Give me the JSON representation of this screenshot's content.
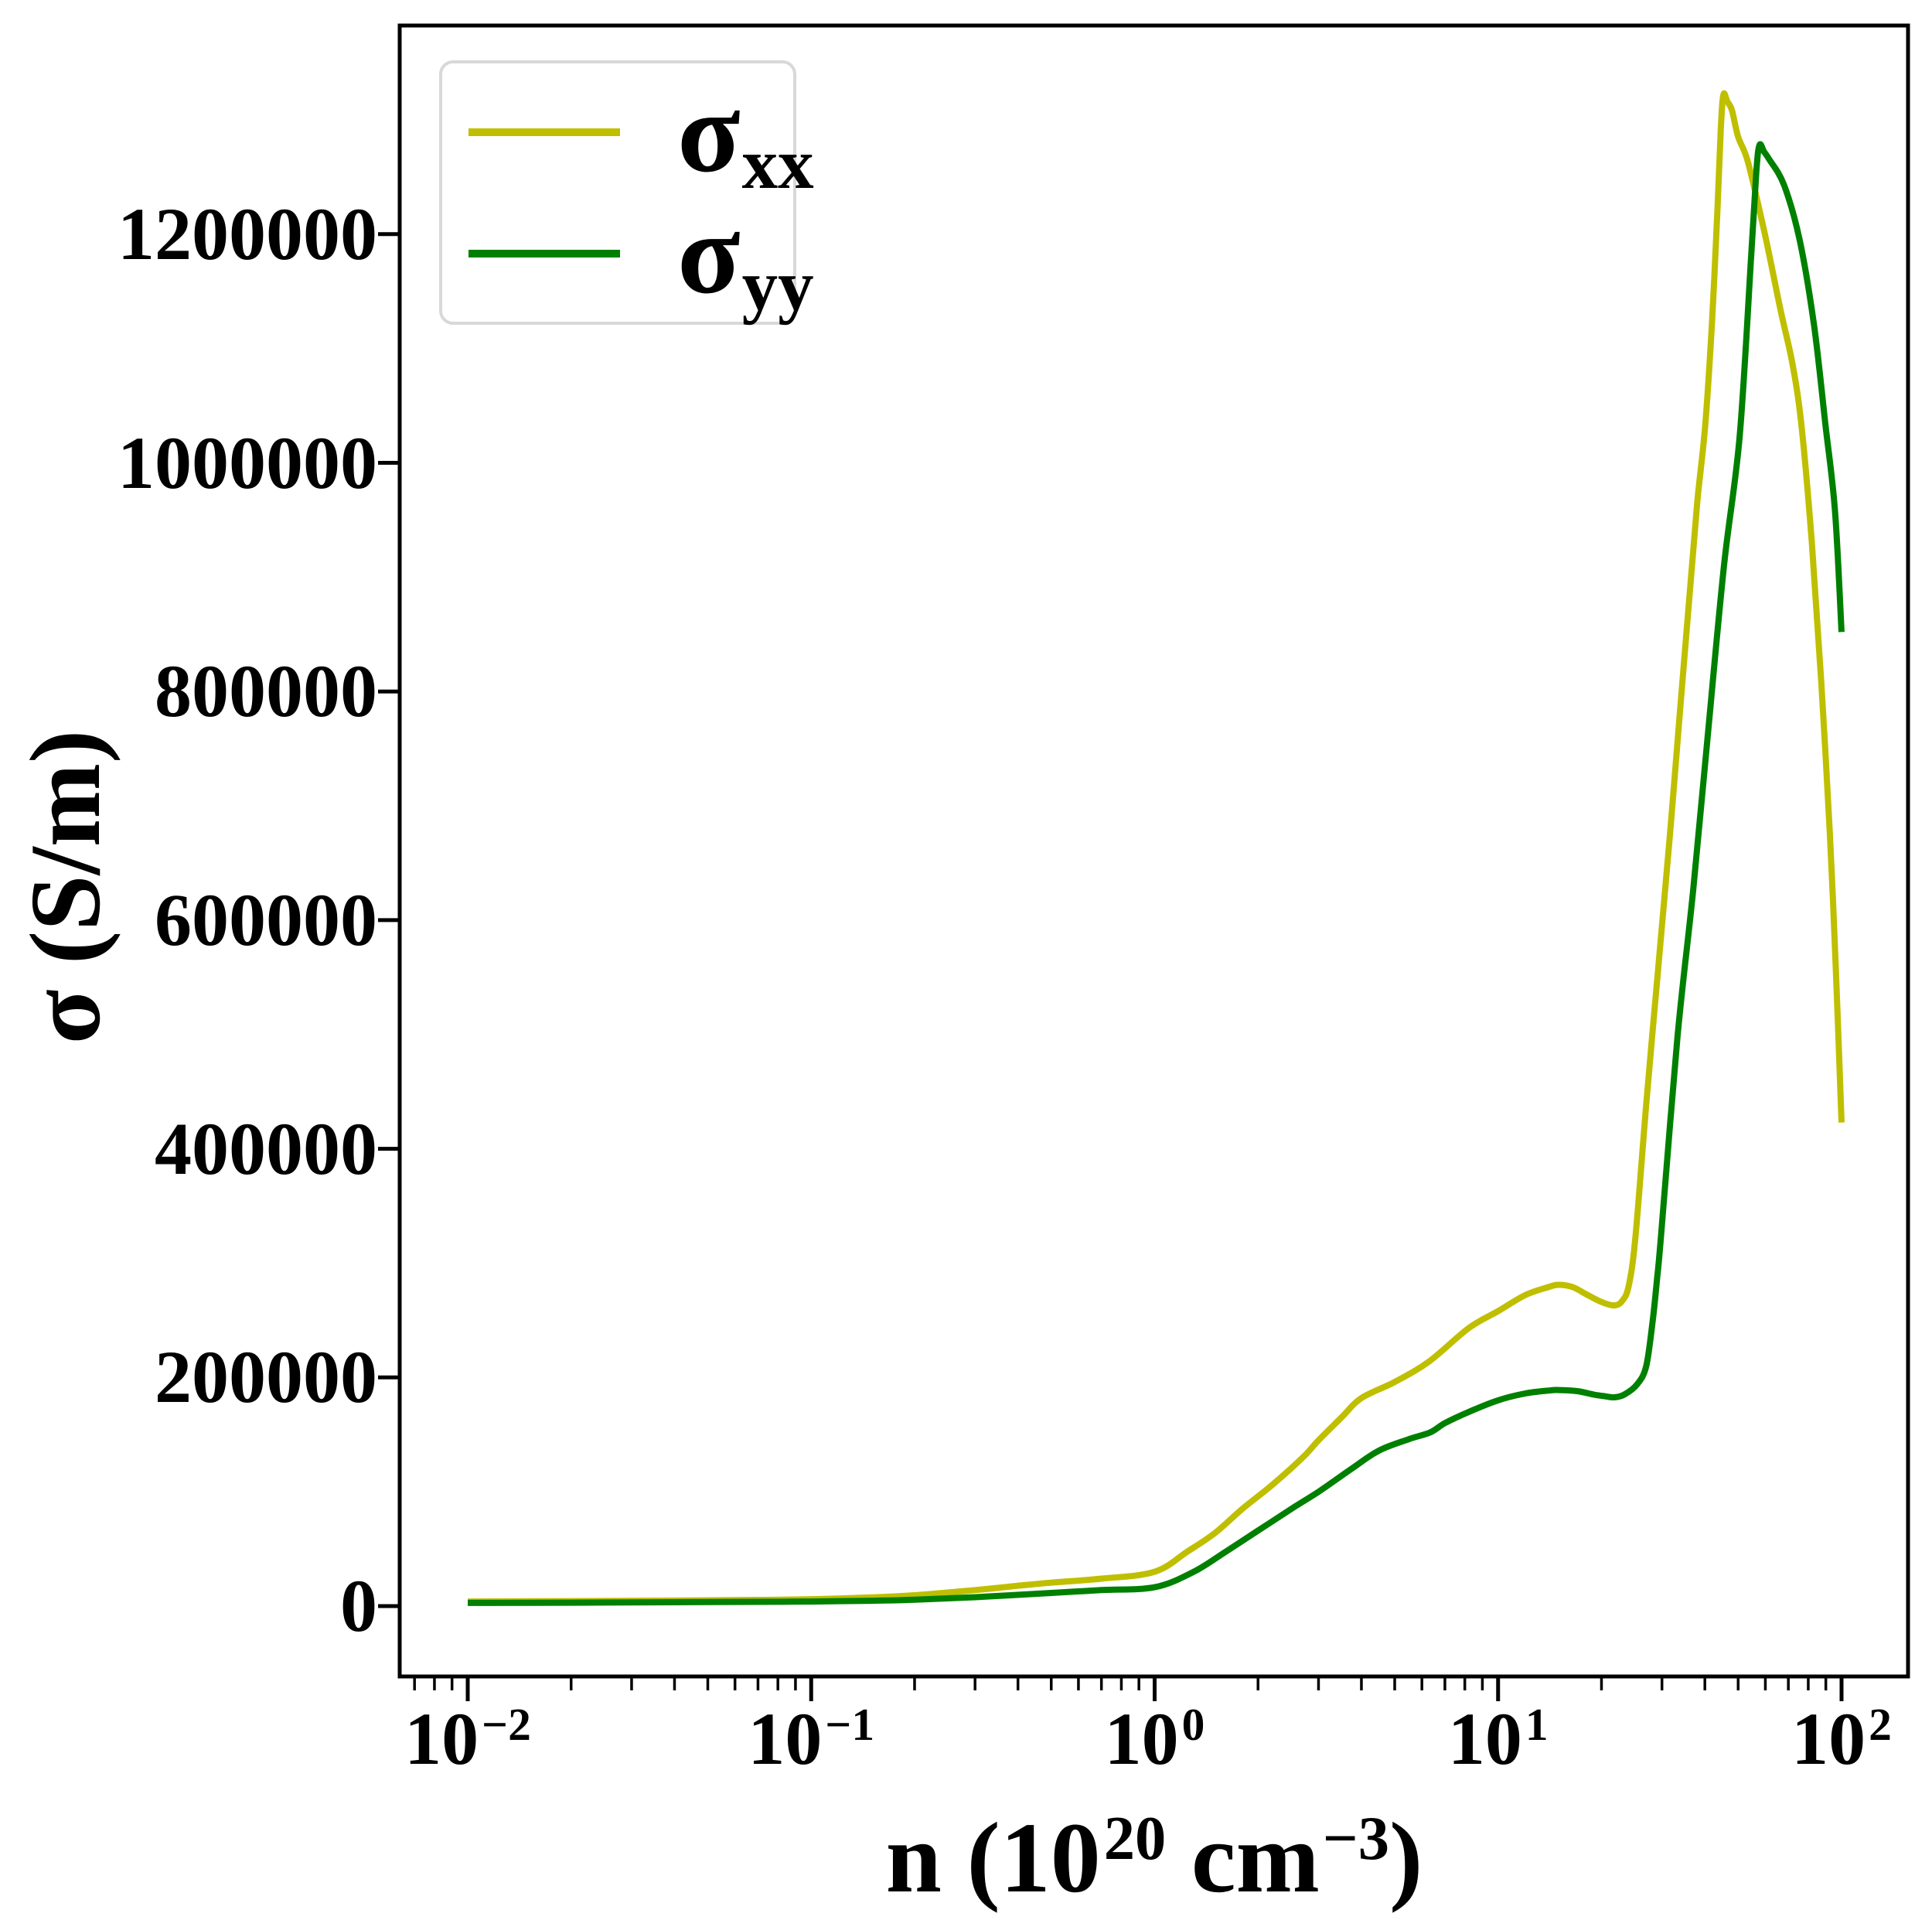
{
  "figure": {
    "background": "#ffffff",
    "text_color": "#000000"
  },
  "chart_data": {
    "type": "line",
    "title": "",
    "x_scale": "log",
    "grid": false,
    "xlabel_parts": {
      "pre": "n (10",
      "sup": "20",
      "mid": " cm",
      "sup2": "−3",
      "post": ")"
    },
    "ylabel": "σ (S/m)",
    "xlim": [
      0.00634,
      156
    ],
    "ylim": [
      -61500,
      1382500
    ],
    "x_ticks": [
      {
        "base": "10",
        "exp": "−2",
        "value": 0.01
      },
      {
        "base": "10",
        "exp": "−1",
        "value": 0.1
      },
      {
        "base": "10",
        "exp": "0",
        "value": 1
      },
      {
        "base": "10",
        "exp": "1",
        "value": 10
      },
      {
        "base": "10",
        "exp": "2",
        "value": 100
      }
    ],
    "y_ticks": [
      {
        "label": "0",
        "value": 0
      },
      {
        "label": "200000",
        "value": 200000
      },
      {
        "label": "400000",
        "value": 400000
      },
      {
        "label": "600000",
        "value": 600000
      },
      {
        "label": "800000",
        "value": 800000
      },
      {
        "label": "1000000",
        "value": 1000000
      },
      {
        "label": "1200000",
        "value": 1200000
      }
    ],
    "legend": {
      "position": "upper left",
      "entries": [
        {
          "base": "σ",
          "sub": "xx",
          "color": "#bfbf00"
        },
        {
          "base": "σ",
          "sub": "yy",
          "color": "#008000"
        }
      ]
    },
    "series": [
      {
        "name": "sigma_xx",
        "color": "#bfbf00",
        "points": [
          [
            0.01,
            4000
          ],
          [
            0.02,
            4300
          ],
          [
            0.04,
            4800
          ],
          [
            0.07,
            5400
          ],
          [
            0.1,
            6000
          ],
          [
            0.15,
            7600
          ],
          [
            0.2,
            9500
          ],
          [
            0.3,
            14000
          ],
          [
            0.4,
            17800
          ],
          [
            0.5,
            20500
          ],
          [
            0.7,
            24000
          ],
          [
            1.0,
            30000
          ],
          [
            1.25,
            48000
          ],
          [
            1.5,
            64000
          ],
          [
            1.8,
            85000
          ],
          [
            2.2,
            106000
          ],
          [
            2.7,
            130000
          ],
          [
            3.0,
            145000
          ],
          [
            3.5,
            165000
          ],
          [
            4.0,
            182000
          ],
          [
            5.0,
            196000
          ],
          [
            6.3,
            214000
          ],
          [
            8.2,
            243000
          ],
          [
            10,
            258000
          ],
          [
            12,
            272000
          ],
          [
            14,
            279000
          ],
          [
            15,
            281000
          ],
          [
            16.5,
            279000
          ],
          [
            18,
            273000
          ],
          [
            20,
            266000
          ],
          [
            21.8,
            263000
          ],
          [
            23,
            267000
          ],
          [
            24,
            280000
          ],
          [
            25.1,
            322000
          ],
          [
            27,
            439000
          ],
          [
            29.2,
            555000
          ],
          [
            31.6,
            672000
          ],
          [
            34,
            790000
          ],
          [
            36,
            880000
          ],
          [
            38,
            965000
          ],
          [
            40.1,
            1033000
          ],
          [
            42,
            1125000
          ],
          [
            43.5,
            1220000
          ],
          [
            44.5,
            1292000
          ],
          [
            45.3,
            1322000
          ],
          [
            46.5,
            1316000
          ],
          [
            48,
            1308000
          ],
          [
            50,
            1285000
          ],
          [
            53.4,
            1263000
          ],
          [
            59.6,
            1202000
          ],
          [
            66.4,
            1134000
          ],
          [
            71.9,
            1087000
          ],
          [
            76.4,
            1033000
          ],
          [
            81.9,
            931000
          ],
          [
            87.2,
            810000
          ],
          [
            92.5,
            674000
          ],
          [
            96.2,
            559000
          ],
          [
            100,
            423000
          ]
        ]
      },
      {
        "name": "sigma_yy",
        "color": "#008000",
        "points": [
          [
            0.01,
            2800
          ],
          [
            0.02,
            3000
          ],
          [
            0.04,
            3400
          ],
          [
            0.07,
            3700
          ],
          [
            0.1,
            4000
          ],
          [
            0.15,
            4700
          ],
          [
            0.2,
            5600
          ],
          [
            0.3,
            7800
          ],
          [
            0.5,
            11500
          ],
          [
            0.7,
            14000
          ],
          [
            1.0,
            16500
          ],
          [
            1.3,
            30000
          ],
          [
            1.6,
            47000
          ],
          [
            2.0,
            66000
          ],
          [
            2.5,
            85000
          ],
          [
            3.0,
            100000
          ],
          [
            3.74,
            120000
          ],
          [
            4.5,
            136000
          ],
          [
            5.5,
            146000
          ],
          [
            6.35,
            152000
          ],
          [
            7.0,
            160000
          ],
          [
            8.24,
            170000
          ],
          [
            10,
            180000
          ],
          [
            12,
            186000
          ],
          [
            14,
            188500
          ],
          [
            15,
            189000
          ],
          [
            17,
            188000
          ],
          [
            19,
            185000
          ],
          [
            20.5,
            183500
          ],
          [
            21.8,
            182600
          ],
          [
            23.3,
            185000
          ],
          [
            25.4,
            194000
          ],
          [
            27,
            210000
          ],
          [
            28.2,
            250000
          ],
          [
            29,
            285000
          ],
          [
            29.8,
            323000
          ],
          [
            33.3,
            498000
          ],
          [
            37,
            627000
          ],
          [
            41,
            769000
          ],
          [
            45.5,
            911000
          ],
          [
            50.5,
            1023000
          ],
          [
            54.6,
            1182000
          ],
          [
            56.5,
            1255000
          ],
          [
            57.7,
            1278000
          ],
          [
            59.5,
            1272000
          ],
          [
            61.4,
            1266000
          ],
          [
            68,
            1243000
          ],
          [
            75.5,
            1195000
          ],
          [
            83.1,
            1121000
          ],
          [
            89.8,
            1033000
          ],
          [
            95.7,
            958000
          ],
          [
            100,
            852000
          ]
        ]
      }
    ]
  }
}
